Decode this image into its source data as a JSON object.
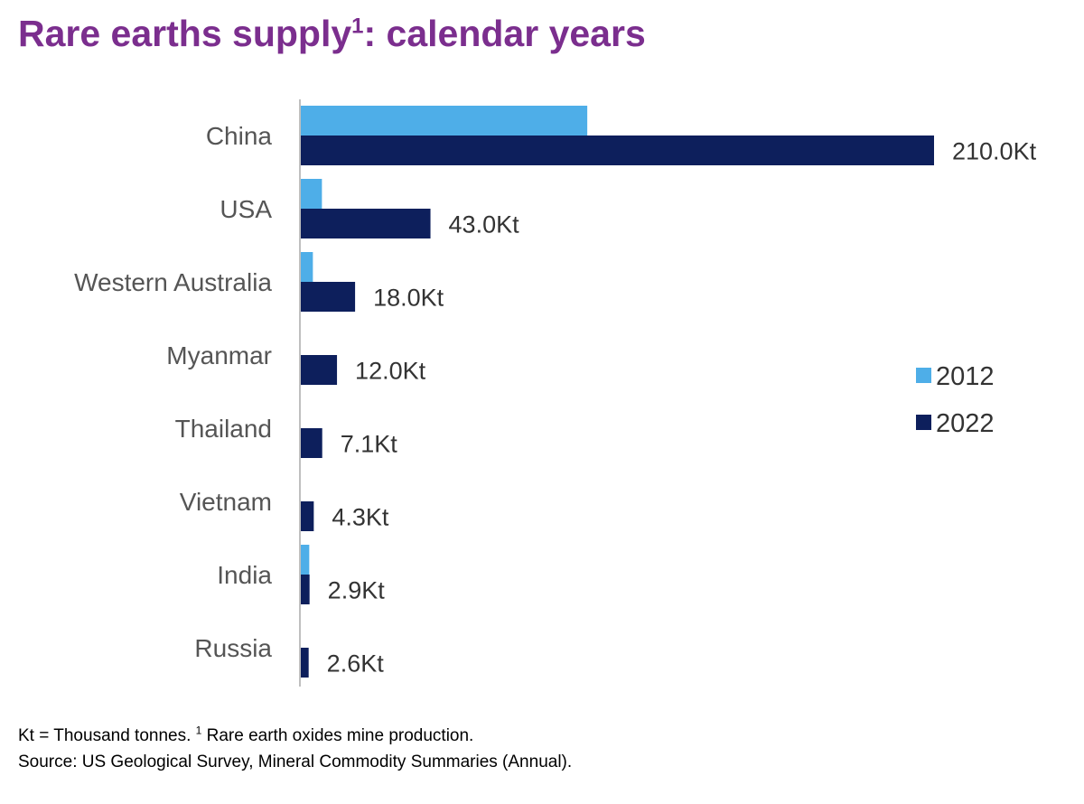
{
  "header": {
    "title_main": "Rare earths supply",
    "title_sup": "1",
    "title_rest": ": calendar years"
  },
  "footnotes": {
    "line1_pre": "Kt = Thousand tonnes. ",
    "line1_sup": "1",
    "line1_post": " Rare earth oxides mine production.",
    "line2": "Source: US Geological Survey, Mineral Commodity Summaries (Annual)."
  },
  "colors": {
    "title": "#7b2e8e",
    "series_2012": "#4eaee8",
    "series_2022": "#0d1f5c",
    "axis": "#bfbfbf",
    "category_text": "#555555",
    "value_text": "#333333"
  },
  "chart_data": {
    "type": "bar",
    "orientation": "horizontal",
    "categories": [
      "China",
      "USA",
      "Western Australia",
      "Myanmar",
      "Thailand",
      "Vietnam",
      "India",
      "Russia"
    ],
    "series": [
      {
        "name": "2012",
        "values": [
          95.0,
          7.0,
          4.0,
          0,
          0,
          0,
          2.8,
          0
        ]
      },
      {
        "name": "2022",
        "values": [
          210.0,
          43.0,
          18.0,
          12.0,
          7.1,
          4.3,
          2.9,
          2.6
        ]
      }
    ],
    "value_labels": [
      "210.0Kt",
      "43.0Kt",
      "18.0Kt",
      "12.0Kt",
      "7.1Kt",
      "4.3Kt",
      "2.9Kt",
      "2.6Kt"
    ],
    "xlim": [
      0,
      210
    ],
    "grid": false,
    "legend": "right"
  }
}
